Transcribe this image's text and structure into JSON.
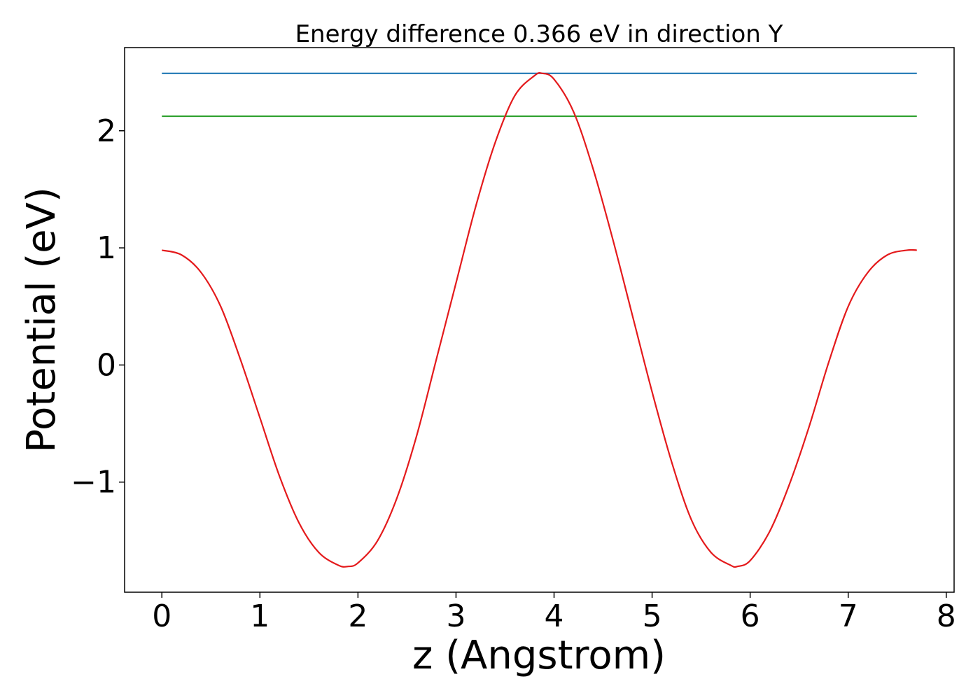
{
  "chart_data": {
    "type": "line",
    "title": "Energy difference 0.366 eV in direction Y",
    "xlabel": "z (Angstrom)",
    "ylabel": "Potential (eV)",
    "xlim": [
      -0.38,
      8.08
    ],
    "ylim": [
      -1.94,
      2.71
    ],
    "x_ticks": [
      0,
      1,
      2,
      3,
      4,
      5,
      6,
      7,
      8
    ],
    "x_tick_labels": [
      "0",
      "1",
      "2",
      "3",
      "4",
      "5",
      "6",
      "7",
      "8"
    ],
    "y_ticks": [
      -1,
      0,
      1,
      2
    ],
    "y_tick_labels": [
      "−1",
      "0",
      "1",
      "2"
    ],
    "grid": false,
    "legend": "none",
    "series": [
      {
        "color": "#1f77b4",
        "x": [
          0,
          7.7
        ],
        "y": [
          2.49,
          2.49
        ]
      },
      {
        "color": "#2ca02c",
        "x": [
          0,
          7.7
        ],
        "y": [
          2.124,
          2.124
        ]
      },
      {
        "color": "#e41a1c",
        "x": [
          0.0,
          0.2,
          0.4,
          0.6,
          0.8,
          1.0,
          1.2,
          1.4,
          1.6,
          1.8,
          1.9,
          2.0,
          2.2,
          2.4,
          2.6,
          2.8,
          3.0,
          3.2,
          3.4,
          3.6,
          3.8,
          3.88,
          4.0,
          4.2,
          4.4,
          4.6,
          4.8,
          5.0,
          5.2,
          5.4,
          5.6,
          5.8,
          5.87,
          6.0,
          6.2,
          6.4,
          6.6,
          6.8,
          7.0,
          7.2,
          7.4,
          7.6,
          7.7
        ],
        "y": [
          0.98,
          0.94,
          0.79,
          0.5,
          0.05,
          -0.45,
          -0.95,
          -1.35,
          -1.6,
          -1.71,
          -1.72,
          -1.69,
          -1.5,
          -1.13,
          -0.6,
          0.05,
          0.7,
          1.35,
          1.9,
          2.3,
          2.47,
          2.49,
          2.44,
          2.16,
          1.67,
          1.07,
          0.42,
          -0.23,
          -0.83,
          -1.32,
          -1.6,
          -1.71,
          -1.72,
          -1.67,
          -1.42,
          -1.02,
          -0.53,
          0.02,
          0.5,
          0.79,
          0.94,
          0.98,
          0.98
        ]
      }
    ]
  }
}
